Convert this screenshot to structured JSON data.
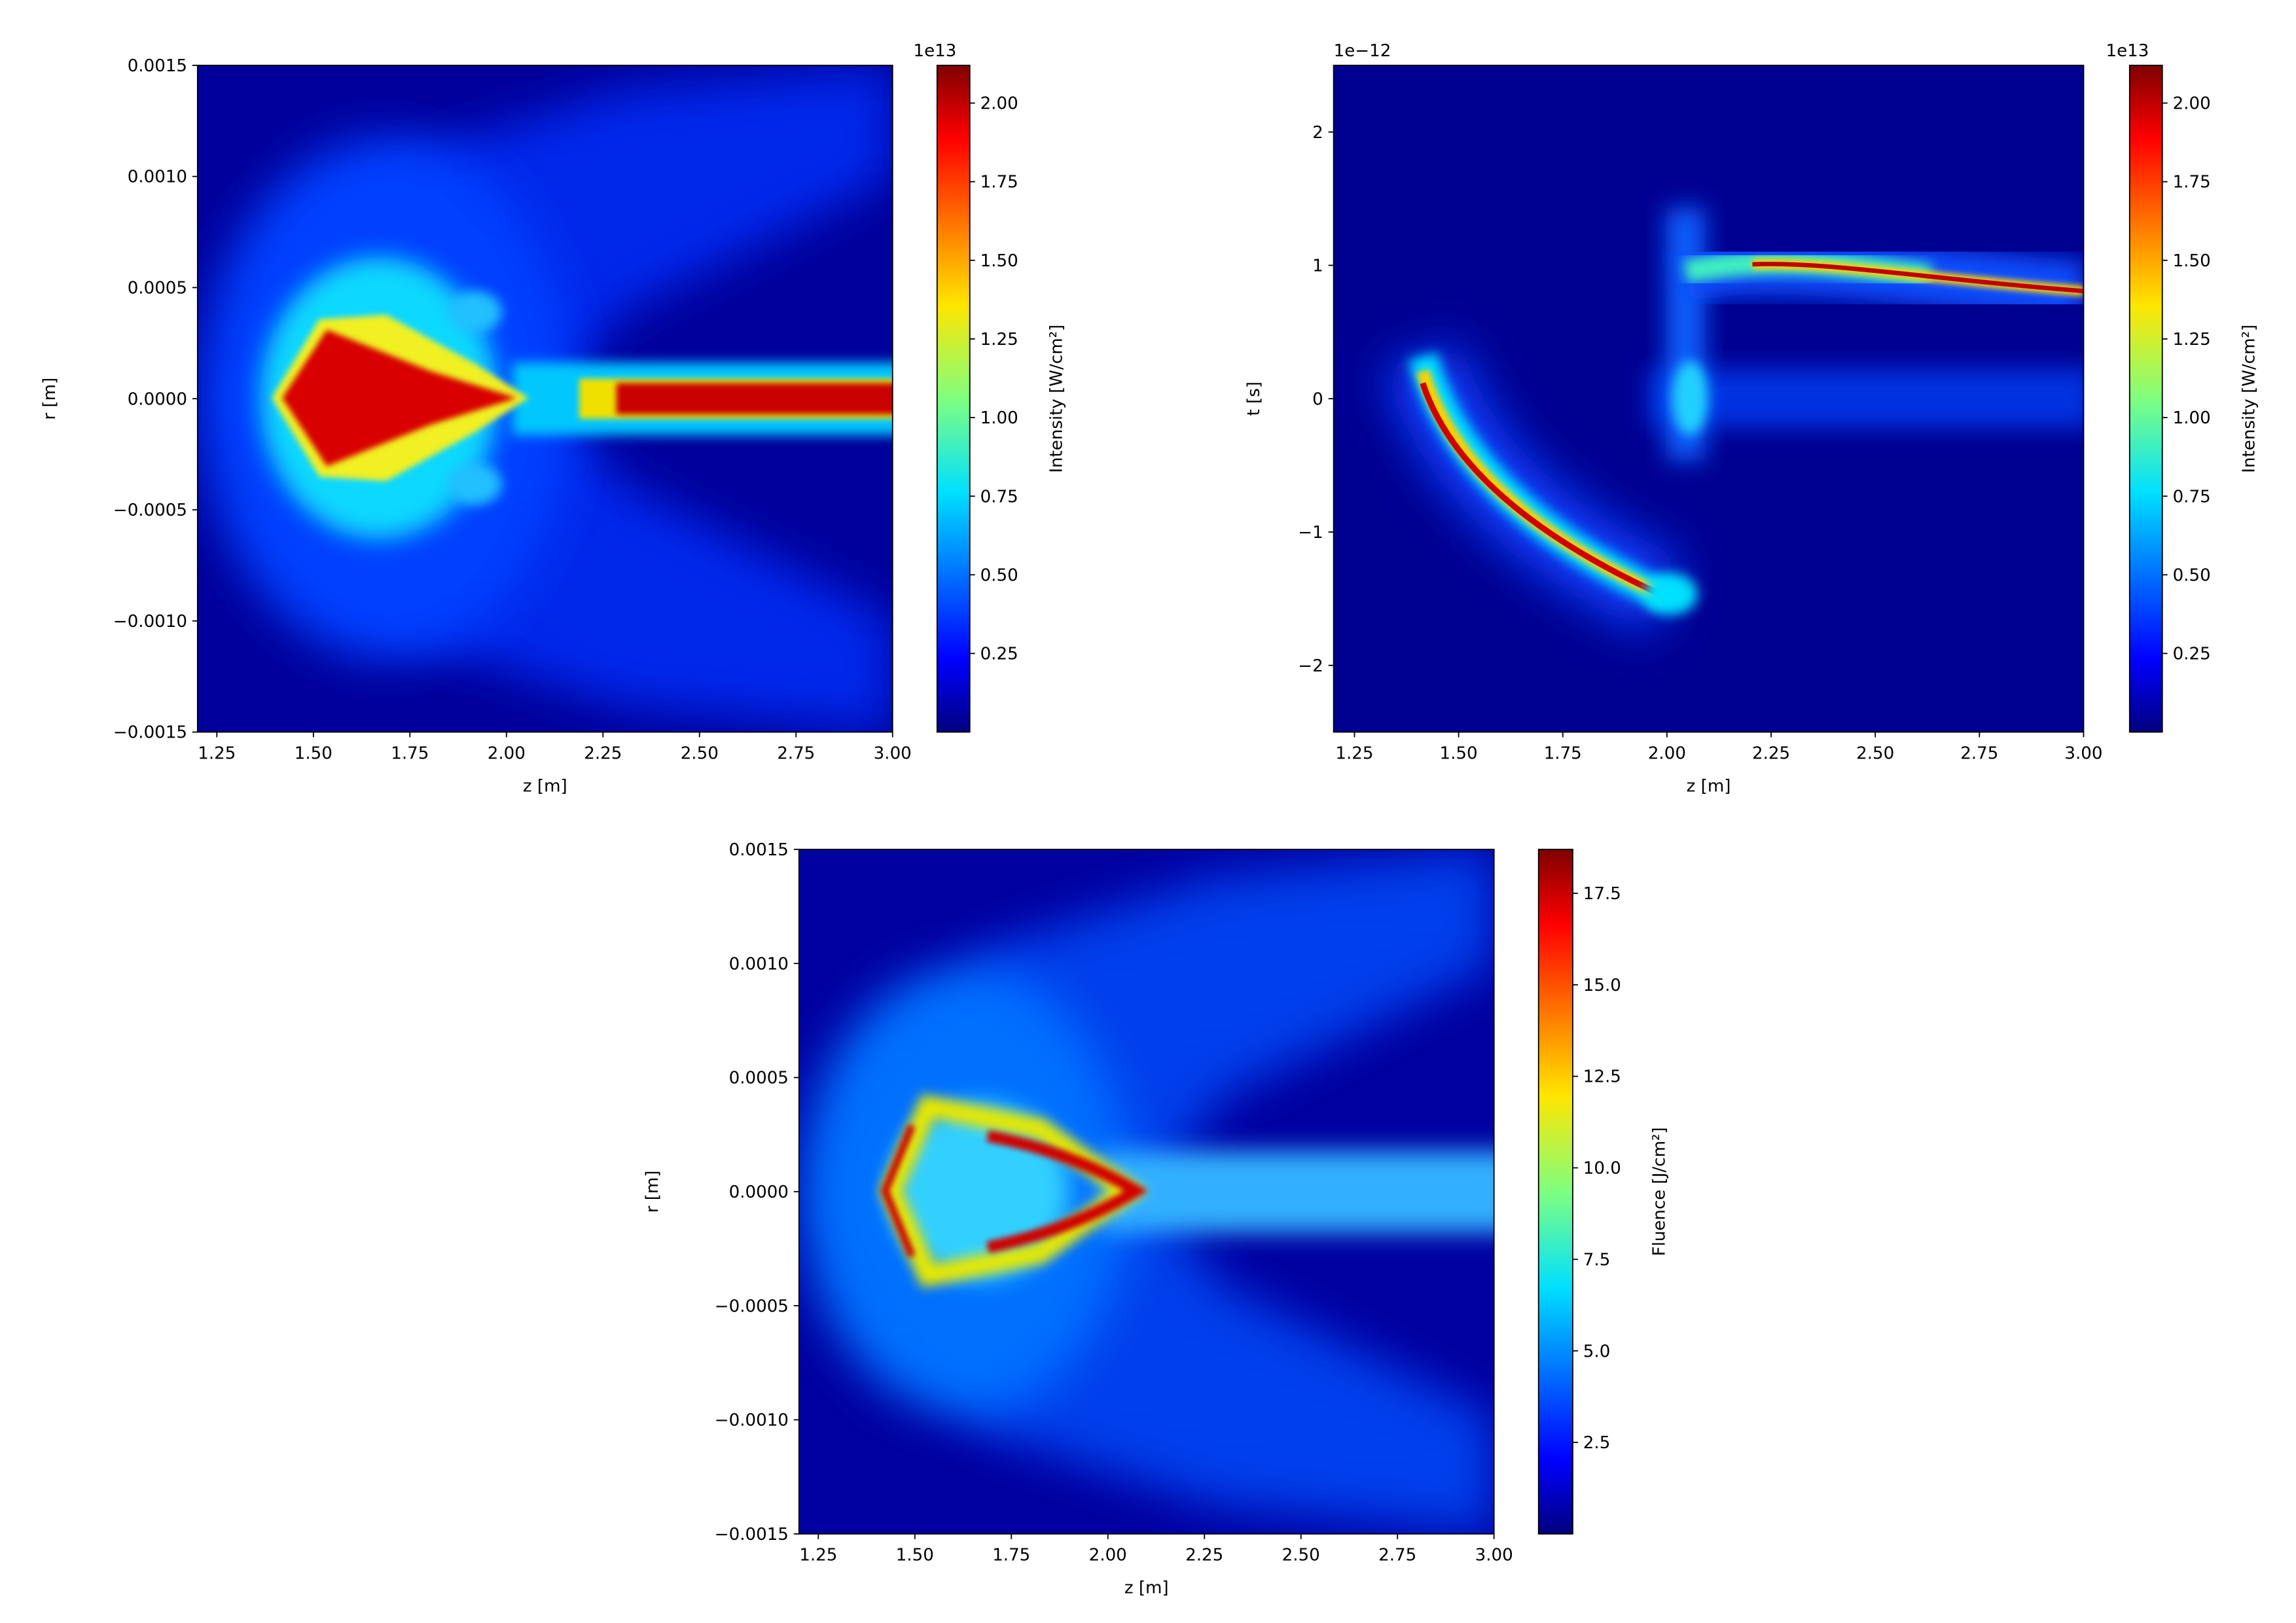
{
  "chart_data": [
    {
      "type": "heatmap",
      "xlabel": "z [m]",
      "ylabel": "r [m]",
      "xlim": [
        1.2,
        3.0
      ],
      "xticks": [
        1.25,
        {
          "value": 1.5,
          "label": "1.50"
        },
        1.75,
        {
          "value": 2,
          "label": "2.00"
        },
        2.25,
        {
          "value": 2.5,
          "label": "2.50"
        },
        2.75,
        {
          "value": 3,
          "label": "3.00"
        }
      ],
      "ylim": [
        -0.0015,
        0.0015
      ],
      "yticks": [
        {
          "value": -0.0015,
          "label": "−0.0015"
        },
        {
          "value": -0.001,
          "label": "−0.0010"
        },
        {
          "value": -0.0005,
          "label": "−0.0005"
        },
        {
          "value": 0,
          "label": "0.0000"
        },
        {
          "value": 0.0005,
          "label": "0.0005"
        },
        {
          "value": 0.001,
          "label": "0.0010"
        },
        {
          "value": 0.0015,
          "label": "0.0015"
        }
      ],
      "colorbar": {
        "label": "Intensity [W/cm²]",
        "offset": "1e13",
        "colormap": "jet",
        "lim": [
          0,
          2.12
        ],
        "ticks": [
          0.25,
          {
            "value": 0.5,
            "label": "0.50"
          },
          0.75,
          {
            "value": 1,
            "label": "1.00"
          },
          1.25,
          {
            "value": 1.5,
            "label": "1.50"
          },
          1.75,
          {
            "value": 2,
            "label": "2.00"
          }
        ]
      }
    },
    {
      "type": "heatmap",
      "xlabel": "z [m]",
      "ylabel": "t [s]",
      "y_offset": "1e−12",
      "xlim": [
        1.2,
        3.0
      ],
      "xticks": [
        1.25,
        {
          "value": 1.5,
          "label": "1.50"
        },
        1.75,
        {
          "value": 2,
          "label": "2.00"
        },
        2.25,
        {
          "value": 2.5,
          "label": "2.50"
        },
        2.75,
        {
          "value": 3,
          "label": "3.00"
        }
      ],
      "ylim": [
        -2.5,
        2.5
      ],
      "yticks": [
        {
          "value": -2,
          "label": "−2"
        },
        {
          "value": -1,
          "label": "−1"
        },
        0,
        1,
        2
      ],
      "colorbar": {
        "label": "Intensity [W/cm²]",
        "offset": "1e13",
        "colormap": "jet",
        "lim": [
          0,
          2.12
        ],
        "ticks": [
          0.25,
          {
            "value": 0.5,
            "label": "0.50"
          },
          0.75,
          {
            "value": 1,
            "label": "1.00"
          },
          1.25,
          {
            "value": 1.5,
            "label": "1.50"
          },
          1.75,
          {
            "value": 2,
            "label": "2.00"
          }
        ]
      }
    },
    {
      "type": "heatmap",
      "xlabel": "z [m]",
      "ylabel": "r [m]",
      "xlim": [
        1.2,
        3.0
      ],
      "xticks": [
        1.25,
        {
          "value": 1.5,
          "label": "1.50"
        },
        1.75,
        {
          "value": 2,
          "label": "2.00"
        },
        2.25,
        {
          "value": 2.5,
          "label": "2.50"
        },
        2.75,
        {
          "value": 3,
          "label": "3.00"
        }
      ],
      "ylim": [
        -0.0015,
        0.0015
      ],
      "yticks": [
        {
          "value": -0.0015,
          "label": "−0.0015"
        },
        {
          "value": -0.001,
          "label": "−0.0010"
        },
        {
          "value": -0.0005,
          "label": "−0.0005"
        },
        {
          "value": 0,
          "label": "0.0000"
        },
        {
          "value": 0.0005,
          "label": "0.0005"
        },
        {
          "value": 0.001,
          "label": "0.0010"
        },
        {
          "value": 0.0015,
          "label": "0.0015"
        }
      ],
      "colorbar": {
        "label": "Fluence [J/cm²]",
        "colormap": "jet",
        "lim": [
          0,
          18.7
        ],
        "ticks": [
          2.5,
          {
            "value": 5,
            "label": "5.0"
          },
          7.5,
          {
            "value": 10,
            "label": "10.0"
          },
          12.5,
          {
            "value": 15,
            "label": "15.0"
          },
          17.5
        ]
      }
    }
  ]
}
